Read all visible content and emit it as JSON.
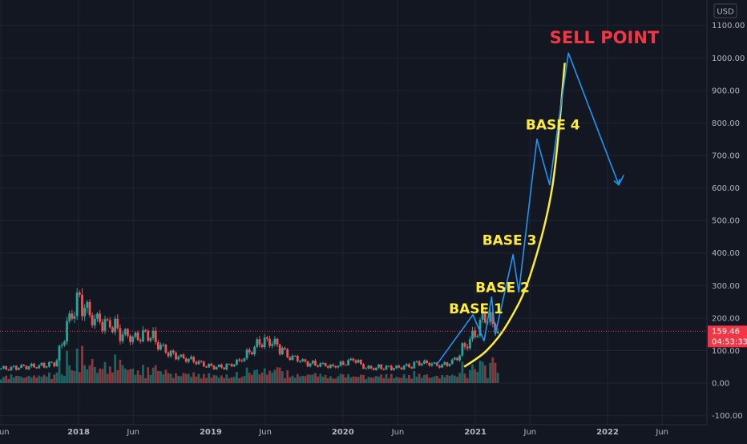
{
  "currency": "USD",
  "colors": {
    "background": "#131722",
    "grid": "#1f2433",
    "up": "#26a69a",
    "down": "#ef5350",
    "projection": "#2196f3",
    "curve": "#ffeb3b",
    "price_line": "#f23645",
    "annotation_base": "#ffeb3b",
    "annotation_sell": "#f23645"
  },
  "price_tag": {
    "price": "159.46",
    "countdown": "04:53:33"
  },
  "chart_data": {
    "type": "candlestick",
    "grid": true,
    "y_ticks": [
      -100,
      0,
      100,
      200,
      300,
      400,
      500,
      600,
      700,
      800,
      900,
      1000,
      1100
    ],
    "y_tick_labels": [
      "-100.00",
      "0.00",
      "100.00",
      "200.00",
      "300.00",
      "400.00",
      "500.00",
      "600.00",
      "700.00",
      "800.00",
      "900.00",
      "1000.00",
      "1100.00"
    ],
    "x_tick_labels": [
      {
        "label": "Jun",
        "date": "2017-06",
        "bold": false
      },
      {
        "label": "2018",
        "date": "2018-01",
        "bold": true
      },
      {
        "label": "Jun",
        "date": "2018-06",
        "bold": false
      },
      {
        "label": "2019",
        "date": "2019-01",
        "bold": true
      },
      {
        "label": "Jun",
        "date": "2019-06",
        "bold": false
      },
      {
        "label": "2020",
        "date": "2020-01",
        "bold": true
      },
      {
        "label": "Jun",
        "date": "2020-06",
        "bold": false
      },
      {
        "label": "2021",
        "date": "2021-01",
        "bold": true
      },
      {
        "label": "Jun",
        "date": "2021-06",
        "bold": false
      },
      {
        "label": "2022",
        "date": "2022-01",
        "bold": true
      },
      {
        "label": "Jun",
        "date": "2022-06",
        "bold": false
      }
    ],
    "price_series": [
      [
        "2017-06",
        45
      ],
      [
        "2017-07",
        47
      ],
      [
        "2017-08",
        50
      ],
      [
        "2017-09",
        52
      ],
      [
        "2017-10",
        55
      ],
      [
        "2017-11",
        65
      ],
      [
        "2017-12",
        180
      ],
      [
        "2018-01",
        260
      ],
      [
        "2018-02",
        210
      ],
      [
        "2018-03",
        190
      ],
      [
        "2018-04",
        180
      ],
      [
        "2018-05",
        150
      ],
      [
        "2018-06",
        140
      ],
      [
        "2018-07",
        155
      ],
      [
        "2018-08",
        130
      ],
      [
        "2018-09",
        95
      ],
      [
        "2018-10",
        85
      ],
      [
        "2018-11",
        70
      ],
      [
        "2018-12",
        60
      ],
      [
        "2019-01",
        52
      ],
      [
        "2019-02",
        48
      ],
      [
        "2019-03",
        58
      ],
      [
        "2019-04",
        75
      ],
      [
        "2019-05",
        110
      ],
      [
        "2019-06",
        135
      ],
      [
        "2019-07",
        115
      ],
      [
        "2019-08",
        90
      ],
      [
        "2019-09",
        70
      ],
      [
        "2019-10",
        62
      ],
      [
        "2019-11",
        58
      ],
      [
        "2019-12",
        52
      ],
      [
        "2020-01",
        60
      ],
      [
        "2020-02",
        75
      ],
      [
        "2020-03",
        45
      ],
      [
        "2020-04",
        48
      ],
      [
        "2020-05",
        50
      ],
      [
        "2020-06",
        47
      ],
      [
        "2020-07",
        52
      ],
      [
        "2020-08",
        62
      ],
      [
        "2020-09",
        58
      ],
      [
        "2020-10",
        52
      ],
      [
        "2020-11",
        65
      ],
      [
        "2020-12",
        110
      ],
      [
        "2021-01",
        150
      ],
      [
        "2021-02",
        215
      ],
      [
        "2021-03",
        159.46
      ]
    ],
    "projection_path": [
      [
        "2020-09-15",
        55
      ],
      [
        "2020-12-25",
        210
      ],
      [
        "2021-01-25",
        130
      ],
      [
        "2021-02-15",
        265
      ],
      [
        "2021-02-25",
        150
      ],
      [
        "2021-04-15",
        395
      ],
      [
        "2021-05-01",
        280
      ],
      [
        "2021-06-20",
        750
      ],
      [
        "2021-07-25",
        610
      ],
      [
        "2021-09-15",
        1015
      ],
      [
        "2022-02-01",
        610
      ],
      [
        "2022-02-15",
        640
      ]
    ],
    "curve_path": [
      [
        "2020-12-01",
        50
      ],
      [
        "2021-02-01",
        100
      ],
      [
        "2021-04-01",
        185
      ],
      [
        "2021-06-01",
        330
      ],
      [
        "2021-08-01",
        600
      ],
      [
        "2021-09-05",
        985
      ]
    ],
    "annotations": [
      {
        "text": "BASE 1",
        "date": "2020-10-20",
        "value": 215,
        "color": "yellow"
      },
      {
        "text": "BASE 2",
        "date": "2021-01-01",
        "value": 280,
        "color": "yellow"
      },
      {
        "text": "BASE 3",
        "date": "2021-01-20",
        "value": 425,
        "color": "yellow"
      },
      {
        "text": "BASE 4",
        "date": "2021-05-20",
        "value": 780,
        "color": "yellow"
      },
      {
        "text": "SELL POINT",
        "date": "2021-07-25",
        "value": 1045,
        "color": "red"
      }
    ]
  }
}
